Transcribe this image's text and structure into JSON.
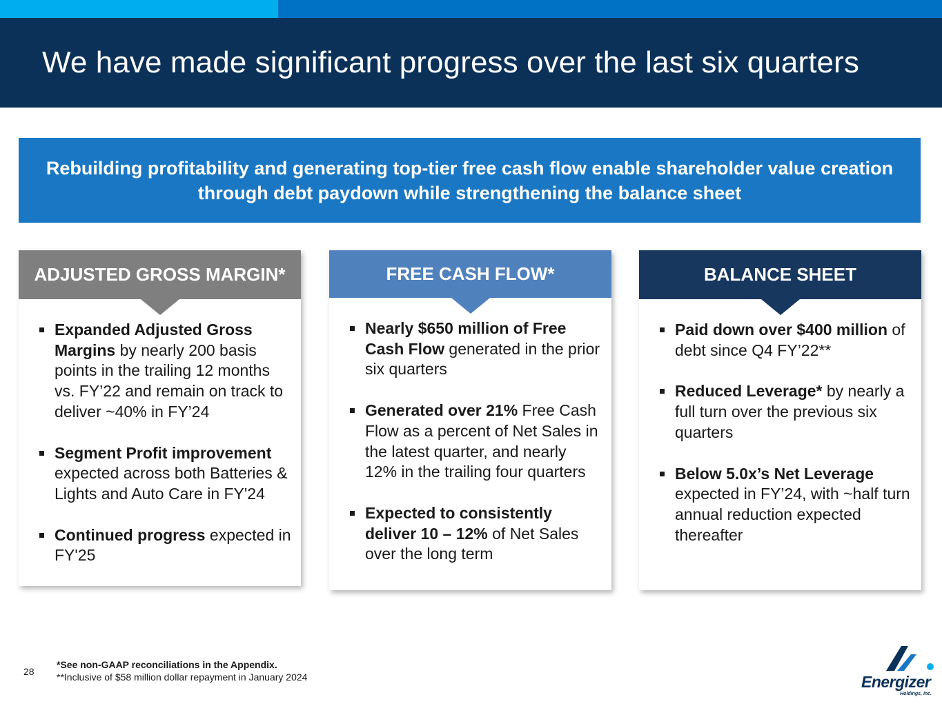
{
  "header": {
    "title": "We have made significant progress over the last six quarters"
  },
  "banner": {
    "text": "Rebuilding profitability and generating top-tier free cash flow enable shareholder value creation through debt paydown while strengthening the balance sheet"
  },
  "cards": {
    "agm": {
      "title": "ADJUSTED GROSS MARGIN*",
      "color": "#7f7f7f",
      "bullets": [
        {
          "bold": "Expanded Adjusted Gross Margins",
          "text": " by nearly 200 basis points in the trailing 12 months vs. FY’22 and remain on track to deliver ~40% in FY’24"
        },
        {
          "bold": "Segment Profit improvement",
          "text": " expected across both Batteries & Lights and Auto Care in FY'24"
        },
        {
          "bold": "Continued progress",
          "text": " expected in FY'25"
        }
      ]
    },
    "fcf": {
      "title": "FREE CASH FLOW*",
      "color": "#4f81bd",
      "bullets": [
        {
          "bold": "Nearly $650 million of Free Cash Flow",
          "text": " generated in the prior six quarters"
        },
        {
          "bold": "Generated over 21%",
          "text": " Free Cash Flow as a percent of Net Sales in the latest quarter, and nearly 12% in the trailing four quarters"
        },
        {
          "bold": "Expected to consistently deliver 10 – 12%",
          "text": " of Net Sales over the long term"
        }
      ]
    },
    "bs": {
      "title": "BALANCE SHEET",
      "color": "#17375e",
      "bullets": [
        {
          "bold": "Paid down over $400 million",
          "text": " of debt since Q4 FY’22**"
        },
        {
          "bold": "Reduced Leverage*",
          "text": " by nearly a full turn over the previous six quarters"
        },
        {
          "bold": "Below 5.0x’s Net Leverage",
          "text": " expected in FY’24, with ~half turn annual reduction expected thereafter"
        }
      ]
    }
  },
  "footer": {
    "page_number": "28",
    "footnote1": "*See non-GAAP reconciliations in the Appendix.",
    "footnote2": "**Inclusive of $58 million dollar repayment in January 2024"
  },
  "logo": {
    "name": "Energizer",
    "subtitle": "Holdings, Inc.",
    "icon": "energizer-logo-icon"
  },
  "colors": {
    "header_bg": "#0b3158",
    "banner_bg": "#1a77c3",
    "topbar_light": "#00aeef",
    "topbar_dark": "#0072c6"
  }
}
